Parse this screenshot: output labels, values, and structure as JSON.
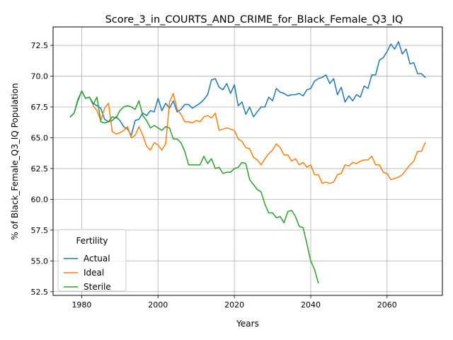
{
  "chart_data": {
    "type": "line",
    "title": "Score_3_in_COURTS_AND_CRIME_for_Black_Female_Q3_IQ",
    "xlabel": "Years",
    "ylabel": "% of Black_Female_Q3_IQ Population",
    "xlim": [
      1972.5,
      2074.5
    ],
    "ylim": [
      52.2,
      74.0
    ],
    "xticks": [
      1980,
      2000,
      2020,
      2040,
      2060
    ],
    "xtick_labels": [
      "1980",
      "2000",
      "2020",
      "2040",
      "2060"
    ],
    "yticks": [
      52.5,
      55.0,
      57.5,
      60.0,
      62.5,
      65.0,
      67.5,
      70.0,
      72.5
    ],
    "ytick_labels": [
      "52.5",
      "55.0",
      "57.5",
      "60.0",
      "62.5",
      "65.0",
      "67.5",
      "70.0",
      "72.5"
    ],
    "grid": true,
    "legend": {
      "title": "Fertility",
      "placement": "lower-left"
    },
    "series": [
      {
        "name": "Actual",
        "color": "#1f77b4",
        "x": [
          1977,
          1978,
          1979,
          1980,
          1981,
          1982,
          1983,
          1984,
          1985,
          1986,
          1987,
          1988,
          1989,
          1990,
          1991,
          1992,
          1993,
          1994,
          1995,
          1996,
          1997,
          1998,
          1999,
          2000,
          2001,
          2002,
          2003,
          2004,
          2005,
          2006,
          2007,
          2008,
          2009,
          2010,
          2011,
          2012,
          2013,
          2014,
          2015,
          2016,
          2017,
          2018,
          2019,
          2020,
          2021,
          2022,
          2023,
          2024,
          2025,
          2026,
          2027,
          2028,
          2029,
          2030,
          2031,
          2032,
          2033,
          2034,
          2035,
          2036,
          2037,
          2038,
          2039,
          2040,
          2041,
          2042,
          2043,
          2044,
          2045,
          2046,
          2047,
          2048,
          2049,
          2050,
          2051,
          2052,
          2053,
          2054,
          2055,
          2056,
          2057,
          2058,
          2059,
          2060,
          2061,
          2062,
          2063,
          2064,
          2065,
          2066,
          2067,
          2068,
          2069,
          2070
        ],
        "y": [
          66.7,
          67.0,
          68.0,
          68.8,
          68.2,
          68.3,
          67.8,
          67.6,
          67.4,
          66.5,
          66.3,
          66.4,
          66.7,
          66.4,
          65.9,
          65.7,
          65.2,
          66.4,
          66.5,
          67.0,
          66.8,
          67.2,
          67.1,
          68.2,
          67.2,
          67.8,
          67.4,
          68.0,
          67.1,
          67.3,
          67.7,
          67.7,
          67.4,
          67.6,
          67.8,
          68.1,
          68.5,
          69.7,
          69.8,
          69.1,
          68.9,
          69.4,
          68.6,
          69.3,
          67.6,
          67.9,
          66.9,
          67.5,
          66.7,
          67.1,
          67.5,
          67.5,
          68.3,
          68.0,
          69.0,
          68.7,
          68.6,
          68.4,
          68.5,
          68.5,
          68.6,
          68.4,
          68.9,
          69.0,
          69.6,
          69.8,
          69.9,
          70.1,
          69.4,
          69.8,
          68.5,
          69.1,
          67.9,
          68.4,
          68.0,
          68.5,
          68.3,
          69.2,
          69.0,
          70.1,
          70.1,
          71.3,
          71.5,
          72.0,
          72.6,
          72.2,
          72.8,
          71.8,
          72.2,
          71.0,
          71.1,
          70.2,
          70.2,
          69.9
        ]
      },
      {
        "name": "Ideal",
        "color": "#ff7f0e",
        "x": [
          1983,
          1984,
          1985,
          1986,
          1987,
          1988,
          1989,
          1990,
          1991,
          1992,
          1993,
          1994,
          1995,
          1996,
          1997,
          1998,
          1999,
          2000,
          2001,
          2002,
          2003,
          2004,
          2005,
          2006,
          2007,
          2008,
          2009,
          2010,
          2011,
          2012,
          2013,
          2014,
          2015,
          2016,
          2017,
          2018,
          2019,
          2020,
          2021,
          2022,
          2023,
          2024,
          2025,
          2026,
          2027,
          2028,
          2029,
          2030,
          2031,
          2032,
          2033,
          2034,
          2035,
          2036,
          2037,
          2038,
          2039,
          2040,
          2041,
          2042,
          2043,
          2044,
          2045,
          2046,
          2047,
          2048,
          2049,
          2050,
          2051,
          2052,
          2053,
          2054,
          2055,
          2056,
          2057,
          2058,
          2059,
          2060,
          2061,
          2062,
          2063,
          2064,
          2065,
          2066,
          2067,
          2068,
          2069,
          2070
        ],
        "y": [
          67.6,
          67.2,
          66.4,
          67.4,
          67.8,
          65.5,
          65.3,
          65.4,
          65.6,
          65.9,
          65.0,
          65.2,
          65.9,
          65.2,
          64.3,
          64.0,
          64.6,
          64.4,
          64.0,
          64.5,
          67.9,
          68.6,
          67.3,
          66.9,
          66.3,
          66.3,
          66.2,
          66.4,
          66.3,
          66.7,
          66.8,
          66.6,
          67.0,
          65.6,
          65.7,
          65.8,
          65.7,
          65.6,
          64.9,
          64.7,
          64.2,
          64.1,
          63.4,
          63.2,
          62.8,
          63.3,
          63.7,
          64.0,
          64.5,
          64.2,
          63.6,
          63.6,
          63.1,
          63.3,
          62.8,
          63.0,
          62.6,
          62.8,
          62.0,
          62.0,
          61.3,
          61.4,
          61.3,
          61.4,
          62.0,
          62.1,
          62.8,
          62.7,
          63.0,
          62.9,
          63.1,
          63.2,
          63.2,
          63.5,
          62.8,
          62.8,
          62.2,
          62.1,
          61.6,
          61.7,
          61.8,
          62.0,
          62.4,
          62.8,
          63.1,
          63.9,
          63.9,
          64.6
        ]
      },
      {
        "name": "Sterile",
        "color": "#2ca02c",
        "x": [
          1977,
          1978,
          1979,
          1980,
          1981,
          1982,
          1983,
          1984,
          1985,
          1986,
          1987,
          1988,
          1989,
          1990,
          1991,
          1992,
          1993,
          1994,
          1995,
          1996,
          1997,
          1998,
          1999,
          2000,
          2001,
          2002,
          2003,
          2004,
          2005,
          2006,
          2007,
          2008,
          2009,
          2010,
          2011,
          2012,
          2013,
          2014,
          2015,
          2016,
          2017,
          2018,
          2019,
          2020,
          2021,
          2022,
          2023,
          2024,
          2025,
          2026,
          2027,
          2028,
          2029,
          2030,
          2031,
          2032,
          2033,
          2034,
          2035,
          2036,
          2037,
          2038,
          2039,
          2040,
          2041,
          2042
        ],
        "y": [
          66.7,
          67.0,
          68.1,
          68.8,
          68.2,
          68.3,
          67.7,
          68.3,
          66.3,
          66.2,
          66.3,
          66.7,
          66.6,
          67.2,
          67.5,
          67.6,
          67.5,
          67.3,
          68.0,
          66.8,
          66.4,
          65.8,
          66.0,
          65.8,
          65.6,
          65.9,
          65.8,
          64.9,
          64.9,
          64.6,
          63.9,
          62.8,
          62.8,
          62.8,
          62.8,
          63.5,
          62.9,
          63.3,
          62.5,
          62.6,
          62.1,
          62.2,
          62.2,
          62.5,
          62.6,
          63.0,
          62.9,
          61.6,
          61.2,
          60.8,
          60.6,
          59.6,
          58.9,
          58.9,
          58.5,
          58.6,
          58.1,
          59.0,
          59.1,
          58.6,
          57.8,
          57.7,
          56.4,
          55.0,
          54.3,
          53.2
        ]
      }
    ]
  }
}
